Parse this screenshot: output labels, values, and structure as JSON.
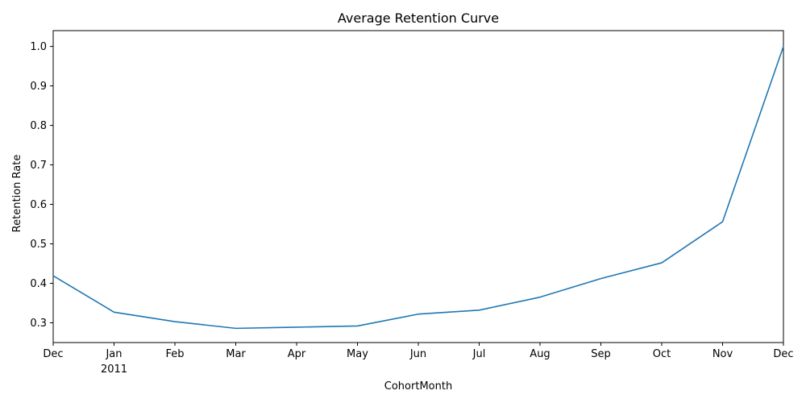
{
  "chart_data": {
    "type": "line",
    "title": "Average Retention Curve",
    "xlabel": "CohortMonth",
    "ylabel": "Retention Rate",
    "categories": [
      "Dec",
      "Jan",
      "Feb",
      "Mar",
      "Apr",
      "May",
      "Jun",
      "Jul",
      "Aug",
      "Sep",
      "Oct",
      "Nov",
      "Dec"
    ],
    "year_label": "2011",
    "year_label_under": "Jan",
    "series": [
      {
        "name": "Retention Rate",
        "color": "#1f77b4",
        "values": [
          0.419,
          0.327,
          0.303,
          0.286,
          0.289,
          0.292,
          0.322,
          0.332,
          0.365,
          0.412,
          0.452,
          0.556,
          1.0
        ]
      }
    ],
    "ylim": [
      0.25,
      1.04
    ],
    "yticks": [
      "0.3",
      "0.4",
      "0.5",
      "0.6",
      "0.7",
      "0.8",
      "0.9",
      "1.0"
    ],
    "grid": false,
    "legend": "none"
  }
}
